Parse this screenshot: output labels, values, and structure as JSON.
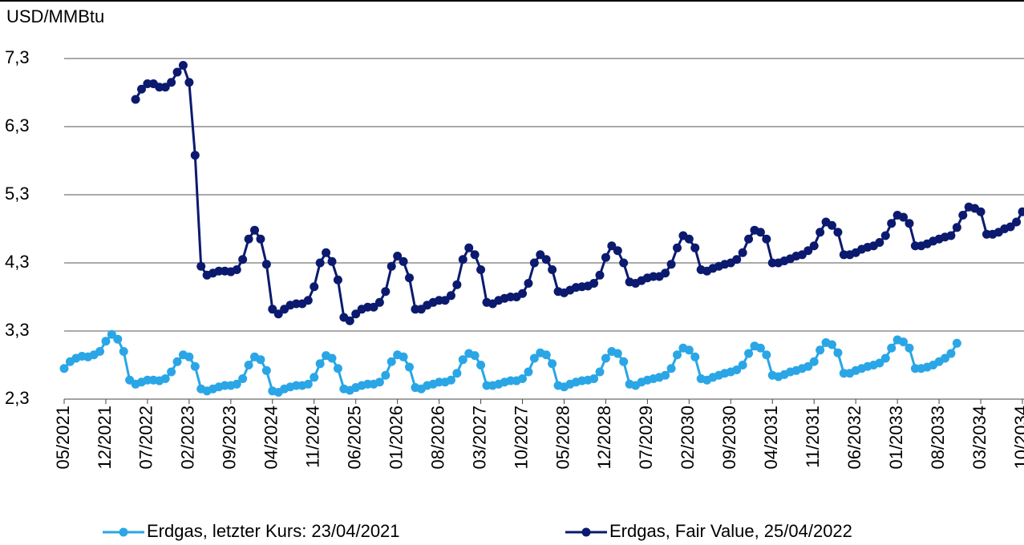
{
  "chart_data": {
    "type": "line",
    "title": "USD/MMBtu",
    "categories": [
      "05/2021",
      null,
      null,
      null,
      null,
      null,
      null,
      "12/2021",
      null,
      null,
      null,
      null,
      null,
      null,
      "07/2022",
      null,
      null,
      null,
      null,
      null,
      null,
      "02/2023",
      null,
      null,
      null,
      null,
      null,
      null,
      "09/2023",
      null,
      null,
      null,
      null,
      null,
      null,
      "04/2024",
      null,
      null,
      null,
      null,
      null,
      null,
      "11/2024",
      null,
      null,
      null,
      null,
      null,
      null,
      "06/2025",
      null,
      null,
      null,
      null,
      null,
      null,
      "01/2026",
      null,
      null,
      null,
      null,
      null,
      null,
      "08/2026",
      null,
      null,
      null,
      null,
      null,
      null,
      "03/2027",
      null,
      null,
      null,
      null,
      null,
      null,
      "10/2027",
      null,
      null,
      null,
      null,
      null,
      null,
      "05/2028",
      null,
      null,
      null,
      null,
      null,
      null,
      "12/2028",
      null,
      null,
      null,
      null,
      null,
      null,
      "07/2029",
      null,
      null,
      null,
      null,
      null,
      null,
      "02/2030",
      null,
      null,
      null,
      null,
      null,
      null,
      "09/2030",
      null,
      null,
      null,
      null,
      null,
      null,
      "04/2031",
      null,
      null,
      null,
      null,
      null,
      null,
      "11/2031",
      null,
      null,
      null,
      null,
      null,
      null,
      "06/2032",
      null,
      null,
      null,
      null,
      null,
      null,
      "01/2033",
      null,
      null,
      null,
      null,
      null,
      null,
      "08/2033",
      null,
      null,
      null,
      null,
      null,
      null,
      "03/2034",
      null,
      null,
      null,
      null,
      null,
      null,
      "10/2034"
    ],
    "series": [
      {
        "name": "Erdgas, letzter Kurs: 23/04/2021",
        "color": "#2aa6e6",
        "values": [
          2.75,
          2.85,
          2.9,
          2.93,
          2.92,
          2.95,
          3.0,
          3.15,
          3.25,
          3.18,
          3.0,
          2.58,
          2.52,
          2.55,
          2.58,
          2.58,
          2.57,
          2.6,
          2.7,
          2.85,
          2.95,
          2.92,
          2.78,
          2.45,
          2.42,
          2.45,
          2.48,
          2.5,
          2.5,
          2.52,
          2.6,
          2.8,
          2.92,
          2.88,
          2.72,
          2.42,
          2.4,
          2.45,
          2.48,
          2.5,
          2.5,
          2.52,
          2.62,
          2.82,
          2.94,
          2.9,
          2.75,
          2.45,
          2.43,
          2.47,
          2.5,
          2.52,
          2.52,
          2.55,
          2.65,
          2.85,
          2.95,
          2.92,
          2.77,
          2.47,
          2.45,
          2.5,
          2.52,
          2.55,
          2.55,
          2.58,
          2.68,
          2.88,
          2.97,
          2.94,
          2.8,
          2.5,
          2.5,
          2.52,
          2.55,
          2.57,
          2.57,
          2.6,
          2.7,
          2.9,
          2.98,
          2.95,
          2.82,
          2.5,
          2.48,
          2.52,
          2.55,
          2.57,
          2.58,
          2.6,
          2.7,
          2.9,
          3.0,
          2.97,
          2.85,
          2.52,
          2.5,
          2.55,
          2.58,
          2.6,
          2.62,
          2.65,
          2.75,
          2.95,
          3.05,
          3.02,
          2.92,
          2.6,
          2.58,
          2.62,
          2.65,
          2.68,
          2.7,
          2.73,
          2.8,
          2.97,
          3.08,
          3.05,
          2.95,
          2.65,
          2.63,
          2.66,
          2.7,
          2.72,
          2.75,
          2.78,
          2.85,
          3.02,
          3.13,
          3.1,
          2.98,
          2.68,
          2.68,
          2.72,
          2.75,
          2.78,
          2.8,
          2.83,
          2.9,
          3.05,
          3.17,
          3.14,
          3.05,
          2.75,
          2.75,
          2.77,
          2.8,
          2.85,
          2.9,
          2.97,
          3.12,
          null,
          null,
          null,
          null,
          null,
          null,
          null,
          null,
          null,
          null,
          null
        ]
      },
      {
        "name": "Erdgas, Fair Value, 25/04/2022",
        "color": "#0b1a6e",
        "values": [
          null,
          null,
          null,
          null,
          null,
          null,
          null,
          null,
          null,
          null,
          null,
          null,
          6.7,
          6.85,
          6.93,
          6.93,
          6.88,
          6.88,
          6.95,
          7.1,
          7.2,
          6.95,
          5.88,
          4.25,
          4.12,
          4.15,
          4.18,
          4.18,
          4.17,
          4.2,
          4.35,
          4.65,
          4.78,
          4.65,
          4.28,
          3.62,
          3.55,
          3.62,
          3.68,
          3.7,
          3.7,
          3.75,
          3.95,
          4.3,
          4.45,
          4.32,
          4.05,
          3.5,
          3.45,
          3.55,
          3.62,
          3.65,
          3.65,
          3.72,
          3.88,
          4.25,
          4.4,
          4.32,
          4.08,
          3.62,
          3.62,
          3.68,
          3.72,
          3.75,
          3.75,
          3.82,
          3.98,
          4.35,
          4.52,
          4.42,
          4.2,
          3.72,
          3.7,
          3.75,
          3.78,
          3.8,
          3.8,
          3.85,
          4.0,
          4.3,
          4.42,
          4.35,
          4.2,
          3.88,
          3.86,
          3.9,
          3.94,
          3.95,
          3.96,
          4.0,
          4.12,
          4.38,
          4.55,
          4.48,
          4.3,
          4.02,
          4.0,
          4.04,
          4.08,
          4.1,
          4.1,
          4.15,
          4.28,
          4.52,
          4.7,
          4.65,
          4.52,
          4.2,
          4.18,
          4.22,
          4.25,
          4.28,
          4.3,
          4.35,
          4.45,
          4.65,
          4.78,
          4.75,
          4.65,
          4.3,
          4.3,
          4.33,
          4.36,
          4.4,
          4.42,
          4.48,
          4.55,
          4.75,
          4.9,
          4.85,
          4.75,
          4.42,
          4.42,
          4.45,
          4.5,
          4.53,
          4.55,
          4.6,
          4.7,
          4.88,
          5.0,
          4.97,
          4.88,
          4.55,
          4.55,
          4.58,
          4.62,
          4.65,
          4.68,
          4.7,
          4.82,
          5.0,
          5.12,
          5.1,
          5.05,
          4.72,
          4.72,
          4.75,
          4.8,
          4.83,
          4.9,
          5.05
        ]
      }
    ],
    "ylim": [
      2.3,
      7.3
    ],
    "yticks": [
      {
        "value": 2.3,
        "label": "2,3"
      },
      {
        "value": 3.3,
        "label": "3,3"
      },
      {
        "value": 4.3,
        "label": "4,3"
      },
      {
        "value": 5.3,
        "label": "5,3"
      },
      {
        "value": 6.3,
        "label": "6,3"
      },
      {
        "value": 7.3,
        "label": "7,3"
      }
    ],
    "grid": true,
    "legend": "bottom"
  }
}
